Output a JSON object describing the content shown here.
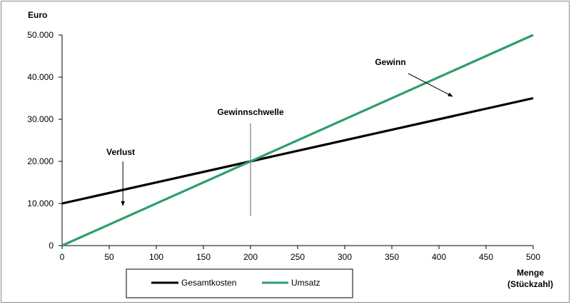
{
  "chart_data": {
    "type": "line",
    "xlabel": [
      "Menge",
      "(Stückzahl)"
    ],
    "ylabel": "Euro",
    "xlim": [
      0,
      500
    ],
    "ylim": [
      0,
      50000
    ],
    "x_ticks": [
      0,
      50,
      100,
      150,
      200,
      250,
      300,
      350,
      400,
      450,
      500
    ],
    "y_ticks": [
      {
        "value": 0,
        "label": "0"
      },
      {
        "value": 10000,
        "label": "10.000"
      },
      {
        "value": 20000,
        "label": "20.000"
      },
      {
        "value": 30000,
        "label": "30.000"
      },
      {
        "value": 40000,
        "label": "40.000"
      },
      {
        "value": 50000,
        "label": "50.000"
      }
    ],
    "grid": false,
    "legend_position": "bottom",
    "series": [
      {
        "name": "Gesamtkosten",
        "color": "#000000",
        "x": [
          0,
          500
        ],
        "y": [
          10000,
          35000
        ]
      },
      {
        "name": "Umsatz",
        "color": "#2e9e6a",
        "x": [
          0,
          500
        ],
        "y": [
          0,
          50000
        ]
      }
    ],
    "annotations": {
      "breakeven": {
        "label": "Gewinnschwelle",
        "x": 200,
        "y_from": 7000,
        "y_to": 29000
      },
      "loss": {
        "label": "Verlust",
        "arrow_from": [
          60,
          11500
        ],
        "arrow_to": [
          60,
          9500
        ]
      },
      "profit": {
        "label": "Gewinn",
        "arrow_from": [
          390,
          39000
        ],
        "arrow_to": [
          412,
          35000
        ]
      }
    }
  }
}
